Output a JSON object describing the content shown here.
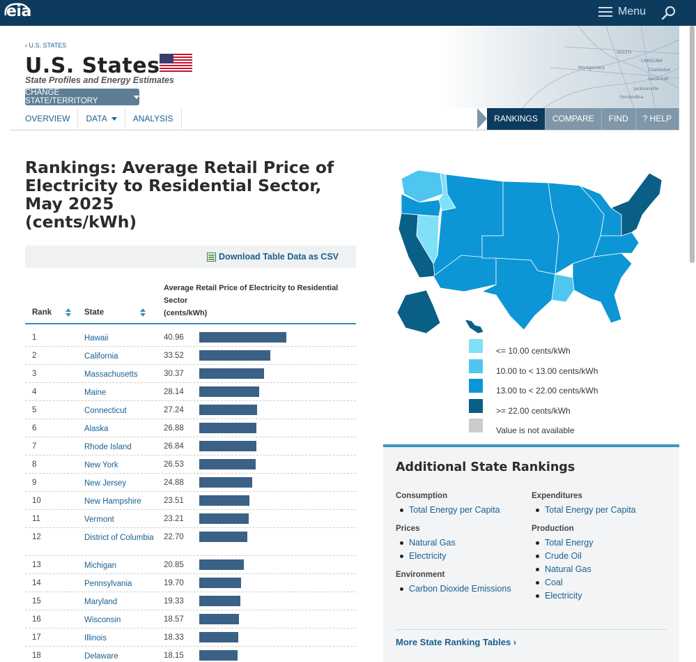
{
  "site": {
    "logo_text": "eia",
    "menu_label": "Menu"
  },
  "header": {
    "breadcrumb": "‹ U.S. STATES",
    "title": "U.S. States",
    "subtitle": "State Profiles and Energy Estimates",
    "change_button": "CHANGE STATE/TERRITORY",
    "subnav": [
      "OVERVIEW",
      "DATA",
      "ANALYSIS"
    ],
    "rightnav": [
      "RANKINGS",
      "COMPARE",
      "FIND",
      "? HELP"
    ]
  },
  "page": {
    "heading": "Rankings: Average Retail Price of Electricity to Residential Sector, May 2025",
    "heading_units": "(cents/kWh)",
    "csv_link": "Download Table Data as CSV"
  },
  "table": {
    "col_rank": "Rank",
    "col_state": "State",
    "col_value": "Average Retail Price of Electricity to Residential Sector",
    "col_value_units": "(cents/kWh)",
    "max_value": 40.96,
    "rows": [
      {
        "rank": "1",
        "state": "Hawaii",
        "value": "40.96",
        "num": 40.96
      },
      {
        "rank": "2",
        "state": "California",
        "value": "33.52",
        "num": 33.52
      },
      {
        "rank": "3",
        "state": "Massachusetts",
        "value": "30.37",
        "num": 30.37
      },
      {
        "rank": "4",
        "state": "Maine",
        "value": "28.14",
        "num": 28.14
      },
      {
        "rank": "5",
        "state": "Connecticut",
        "value": "27.24",
        "num": 27.24
      },
      {
        "rank": "6",
        "state": "Alaska",
        "value": "26.88",
        "num": 26.88
      },
      {
        "rank": "7",
        "state": "Rhode Island",
        "value": "26.84",
        "num": 26.84
      },
      {
        "rank": "8",
        "state": "New York",
        "value": "26.53",
        "num": 26.53
      },
      {
        "rank": "9",
        "state": "New Jersey",
        "value": "24.88",
        "num": 24.88
      },
      {
        "rank": "10",
        "state": "New Hampshire",
        "value": "23.51",
        "num": 23.51
      },
      {
        "rank": "11",
        "state": "Vermont",
        "value": "23.21",
        "num": 23.21
      },
      {
        "rank": "12",
        "state": "District of Columbia",
        "value": "22.70",
        "num": 22.7
      },
      {
        "rank": "13",
        "state": "Michigan",
        "value": "20.85",
        "num": 20.85
      },
      {
        "rank": "14",
        "state": "Pennsylvania",
        "value": "19.70",
        "num": 19.7
      },
      {
        "rank": "15",
        "state": "Maryland",
        "value": "19.33",
        "num": 19.33
      },
      {
        "rank": "16",
        "state": "Wisconsin",
        "value": "18.57",
        "num": 18.57
      },
      {
        "rank": "17",
        "state": "Illinois",
        "value": "18.33",
        "num": 18.33
      },
      {
        "rank": "18",
        "state": "Delaware",
        "value": "18.15",
        "num": 18.15
      }
    ]
  },
  "legend": [
    {
      "label": "<= 10.00 cents/kWh",
      "color": "#80e0f8"
    },
    {
      "label": "10.00 to < 13.00 cents/kWh",
      "color": "#4ec6ef"
    },
    {
      "label": "13.00 to < 22.00 cents/kWh",
      "color": "#0d96d6"
    },
    {
      "label": ">= 22.00 cents/kWh",
      "color": "#0a5f86"
    },
    {
      "label": "Value is not available",
      "color": "#cccccc"
    }
  ],
  "additional": {
    "title": "Additional State Rankings",
    "left": [
      {
        "heading": "Consumption",
        "items": [
          "Total Energy per Capita"
        ]
      },
      {
        "heading": "Prices",
        "items": [
          "Natural Gas",
          "Electricity"
        ]
      },
      {
        "heading": "Environment",
        "items": [
          "Carbon Dioxide Emissions"
        ]
      }
    ],
    "right": [
      {
        "heading": "Expenditures",
        "items": [
          "Total Energy per Capita"
        ]
      },
      {
        "heading": "Production",
        "items": [
          "Total Energy",
          "Crude Oil",
          "Natural Gas",
          "Coal",
          "Electricity"
        ]
      }
    ],
    "more_link": "More State Ranking Tables ›"
  }
}
